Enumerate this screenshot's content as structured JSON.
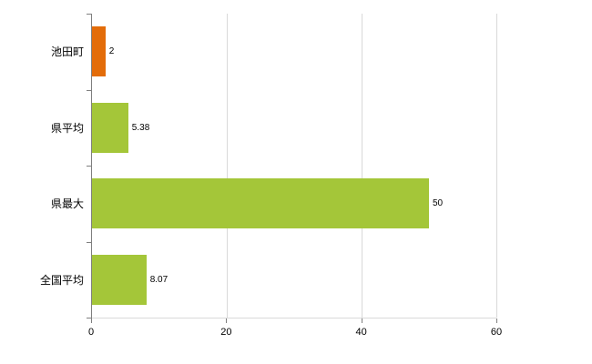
{
  "chart_data": {
    "type": "bar",
    "orientation": "horizontal",
    "title": "",
    "xlabel": "",
    "ylabel": "",
    "categories": [
      "池田町",
      "県平均",
      "県最大",
      "全国平均"
    ],
    "values": [
      2,
      5.38,
      50,
      8.07
    ],
    "value_labels": [
      "2",
      "5.38",
      "50",
      "8.07"
    ],
    "bar_colors": [
      "#e36c09",
      "#a4c639",
      "#a4c639",
      "#a4c639"
    ],
    "xlim": [
      0,
      60
    ],
    "x_ticks": [
      0,
      20,
      40,
      60
    ],
    "x_tick_labels": [
      "0",
      "20",
      "40",
      "60"
    ],
    "grid": true,
    "legend_position": "none",
    "colors": {
      "background": "#ffffff",
      "gridline": "#d9d9d9",
      "axis": "#7f7f7f",
      "text": "#000000"
    }
  }
}
